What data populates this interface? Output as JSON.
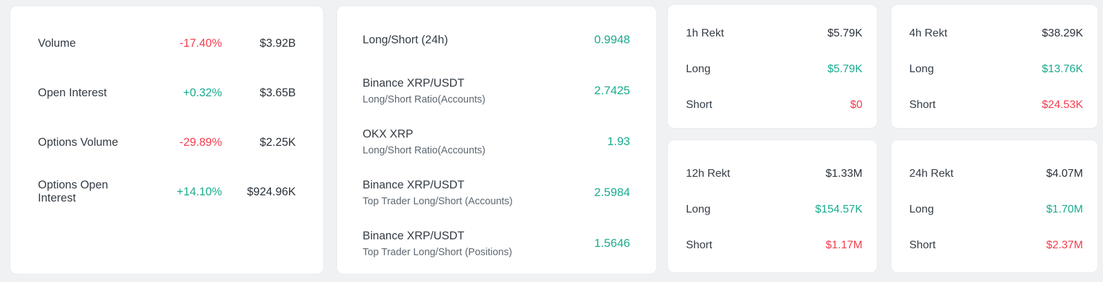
{
  "colors": {
    "green": "#17ab8e",
    "red": "#f43c4c",
    "dark_value": "#2a3139",
    "label": "#333b44",
    "sublabel": "#5d6770",
    "card_background": "#ffffff",
    "page_background": "#f0f1f3"
  },
  "labels": {
    "long": "Long",
    "short": "Short"
  },
  "market_card": {
    "rows": [
      {
        "label": "Volume",
        "change": "-17.40%",
        "direction": "down",
        "value": "$3.92B"
      },
      {
        "label": "Open Interest",
        "change": "+0.32%",
        "direction": "up",
        "value": "$3.65B"
      },
      {
        "label": "Options Volume",
        "change": "-29.89%",
        "direction": "down",
        "value": "$2.25K"
      },
      {
        "label": "Options Open Interest",
        "change": "+14.10%",
        "direction": "up",
        "value": "$924.96K"
      }
    ]
  },
  "ratio_card": {
    "rows": [
      {
        "label": "Long/Short (24h)",
        "sublabel": "",
        "value": "0.9948"
      },
      {
        "label": "Binance XRP/USDT",
        "sublabel": "Long/Short Ratio(Accounts)",
        "value": "2.7425"
      },
      {
        "label": "OKX XRP",
        "sublabel": "Long/Short Ratio(Accounts)",
        "value": "1.93"
      },
      {
        "label": "Binance XRP/USDT",
        "sublabel": "Top Trader Long/Short (Accounts)",
        "value": "2.5984"
      },
      {
        "label": "Binance XRP/USDT",
        "sublabel": "Top Trader Long/Short (Positions)",
        "value": "1.5646"
      }
    ]
  },
  "rekt_cards": [
    {
      "title": "1h Rekt",
      "total": "$5.79K",
      "long": "$5.79K",
      "short": "$0"
    },
    {
      "title": "4h Rekt",
      "total": "$38.29K",
      "long": "$13.76K",
      "short": "$24.53K"
    },
    {
      "title": "12h Rekt",
      "total": "$1.33M",
      "long": "$154.57K",
      "short": "$1.17M"
    },
    {
      "title": "24h Rekt",
      "total": "$4.07M",
      "long": "$1.70M",
      "short": "$2.37M"
    }
  ]
}
